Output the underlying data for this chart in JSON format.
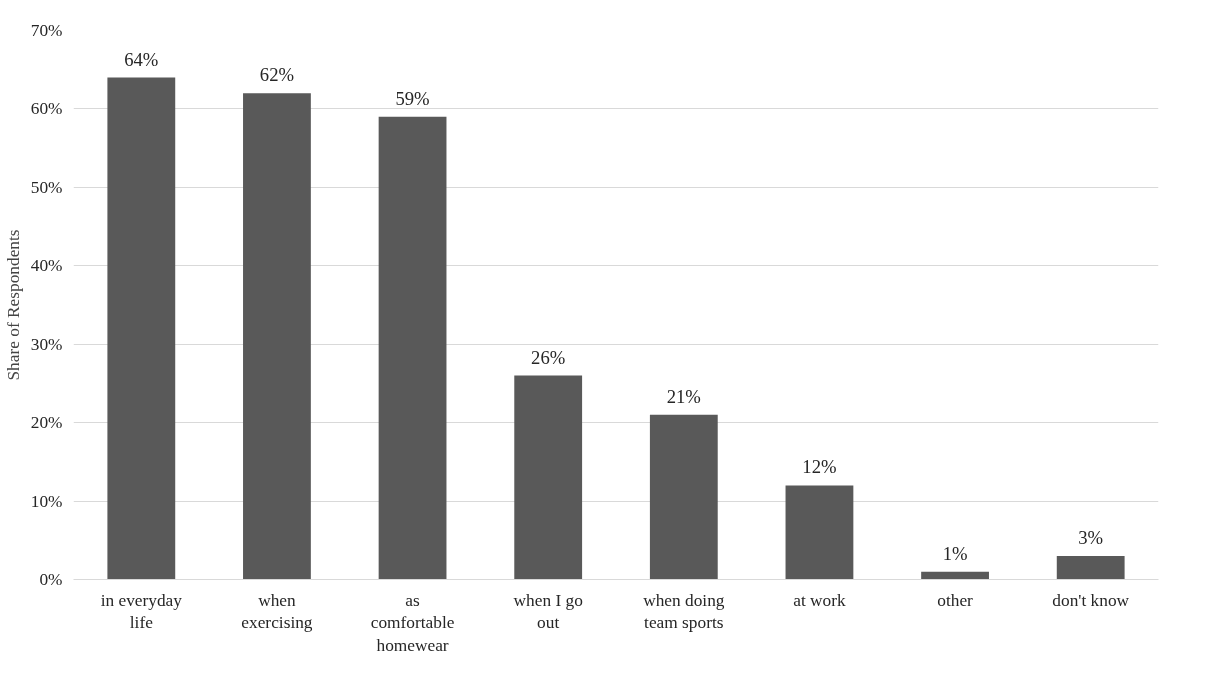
{
  "chart_data": {
    "type": "bar",
    "ylabel": "Share of Respondents",
    "categories": [
      "in everyday\nlife",
      "when\nexercising",
      "as\ncomfortable\nhomewear",
      "when I go\nout",
      "when doing\nteam sports",
      "at work",
      "other",
      "don't know"
    ],
    "values": [
      64,
      62,
      59,
      26,
      21,
      12,
      1,
      3
    ],
    "value_labels": [
      "64%",
      "62%",
      "59%",
      "26%",
      "21%",
      "12%",
      "1%",
      "3%"
    ],
    "color": "#595959",
    "ylim": [
      0,
      70
    ],
    "yticks": [
      {
        "value": 0,
        "label": "0%"
      },
      {
        "value": 10,
        "label": "10%"
      },
      {
        "value": 20,
        "label": "20%"
      },
      {
        "value": 30,
        "label": "30%"
      },
      {
        "value": 40,
        "label": "40%"
      },
      {
        "value": 50,
        "label": "50%"
      },
      {
        "value": 60,
        "label": "60%"
      },
      {
        "value": 70,
        "label": "70%"
      }
    ],
    "grid": "y"
  }
}
